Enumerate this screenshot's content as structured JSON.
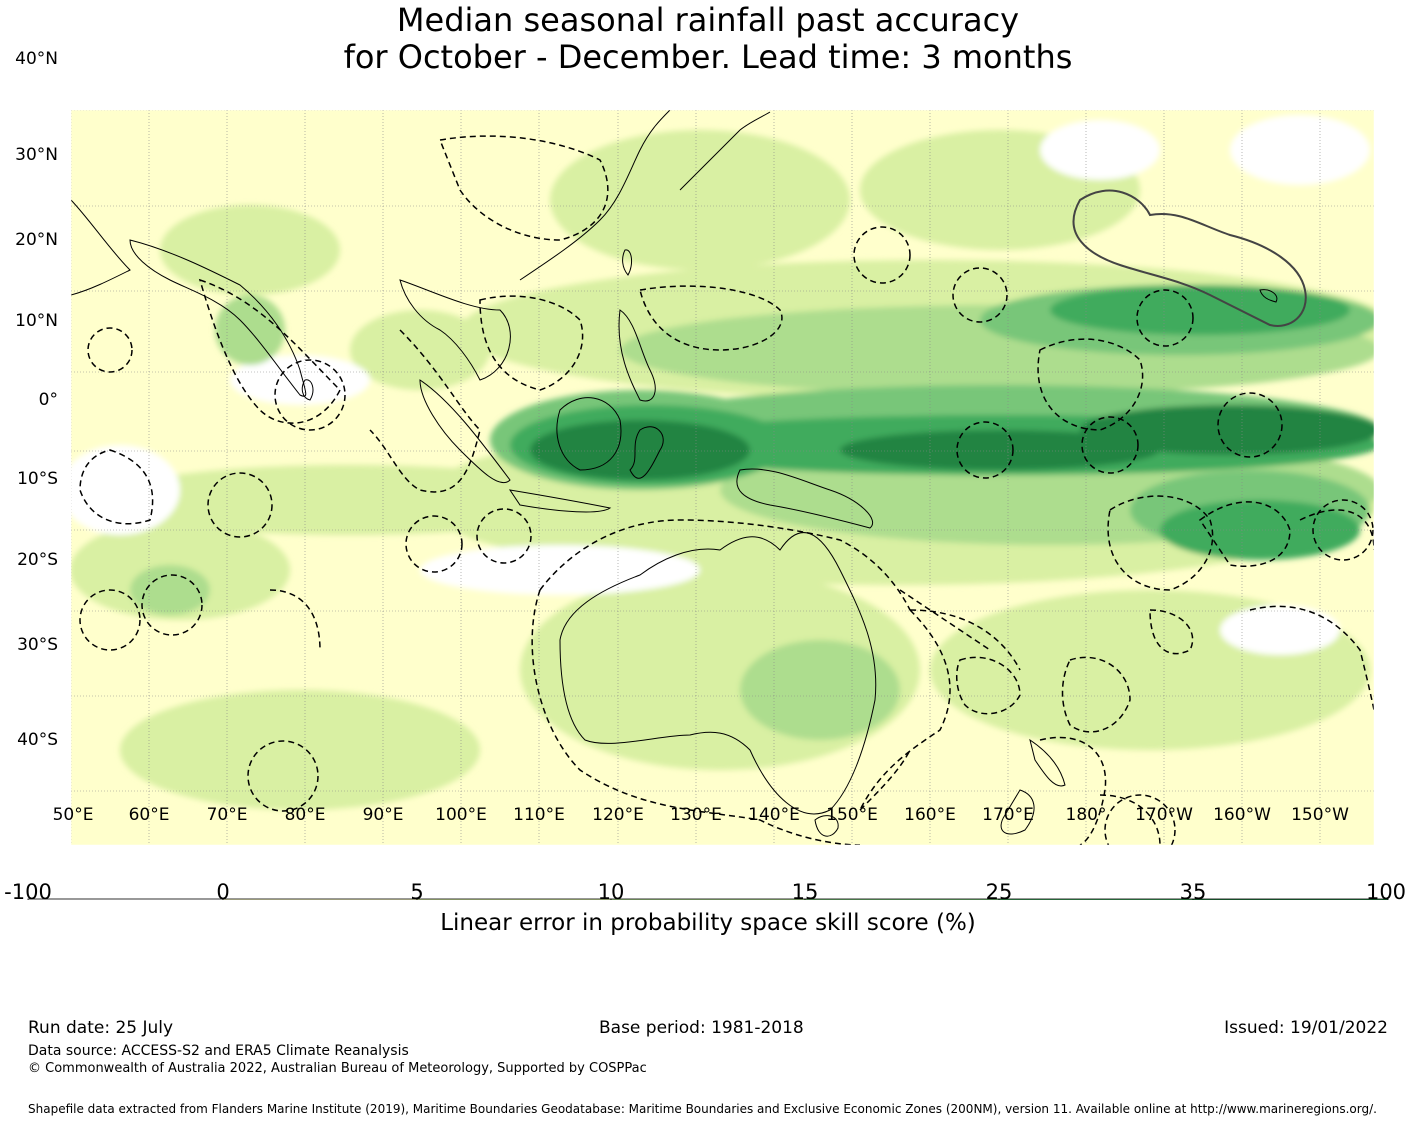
{
  "title": {
    "line1": "Median seasonal rainfall past accuracy",
    "line2": "for October - December. Lead time: 3 months"
  },
  "axes": {
    "lat_labels": [
      "40°N",
      "30°N",
      "20°N",
      "10°N",
      "0°",
      "10°S",
      "20°S",
      "30°S",
      "40°S"
    ],
    "lon_labels": [
      "50°E",
      "60°E",
      "70°E",
      "80°E",
      "90°E",
      "100°E",
      "110°E",
      "120°E",
      "130°E",
      "140°E",
      "150°E",
      "160°E",
      "170°E",
      "180°",
      "170°W",
      "160°W",
      "150°W"
    ]
  },
  "colorbar": {
    "ticks": [
      "-100",
      "0",
      "5",
      "10",
      "15",
      "25",
      "35",
      "100"
    ],
    "colors": [
      "#ffffff",
      "#ffffcc",
      "#d9f0a3",
      "#addd8e",
      "#78c679",
      "#41ab5d",
      "#238443"
    ],
    "label": "Linear error in probability space skill score (%)"
  },
  "footer": {
    "run_date": "Run date: 25 July",
    "base_period": "Base period: 1981-2018",
    "issued": "Issued: 19/01/2022",
    "data_source": "Data source: ACCESS-S2 and ERA5 Climate Reanalysis",
    "copyright": "© Commonwealth of Australia 2022, Australian Bureau of Meteorology, Supported by COSPPac",
    "shapefile": "Shapefile data extracted from Flanders Marine Institute (2019), Maritime Boundaries Geodatabase: Maritime Boundaries and Exclusive Economic Zones (200NM), version 11. Available online at http://www.marineregions.org/."
  }
}
